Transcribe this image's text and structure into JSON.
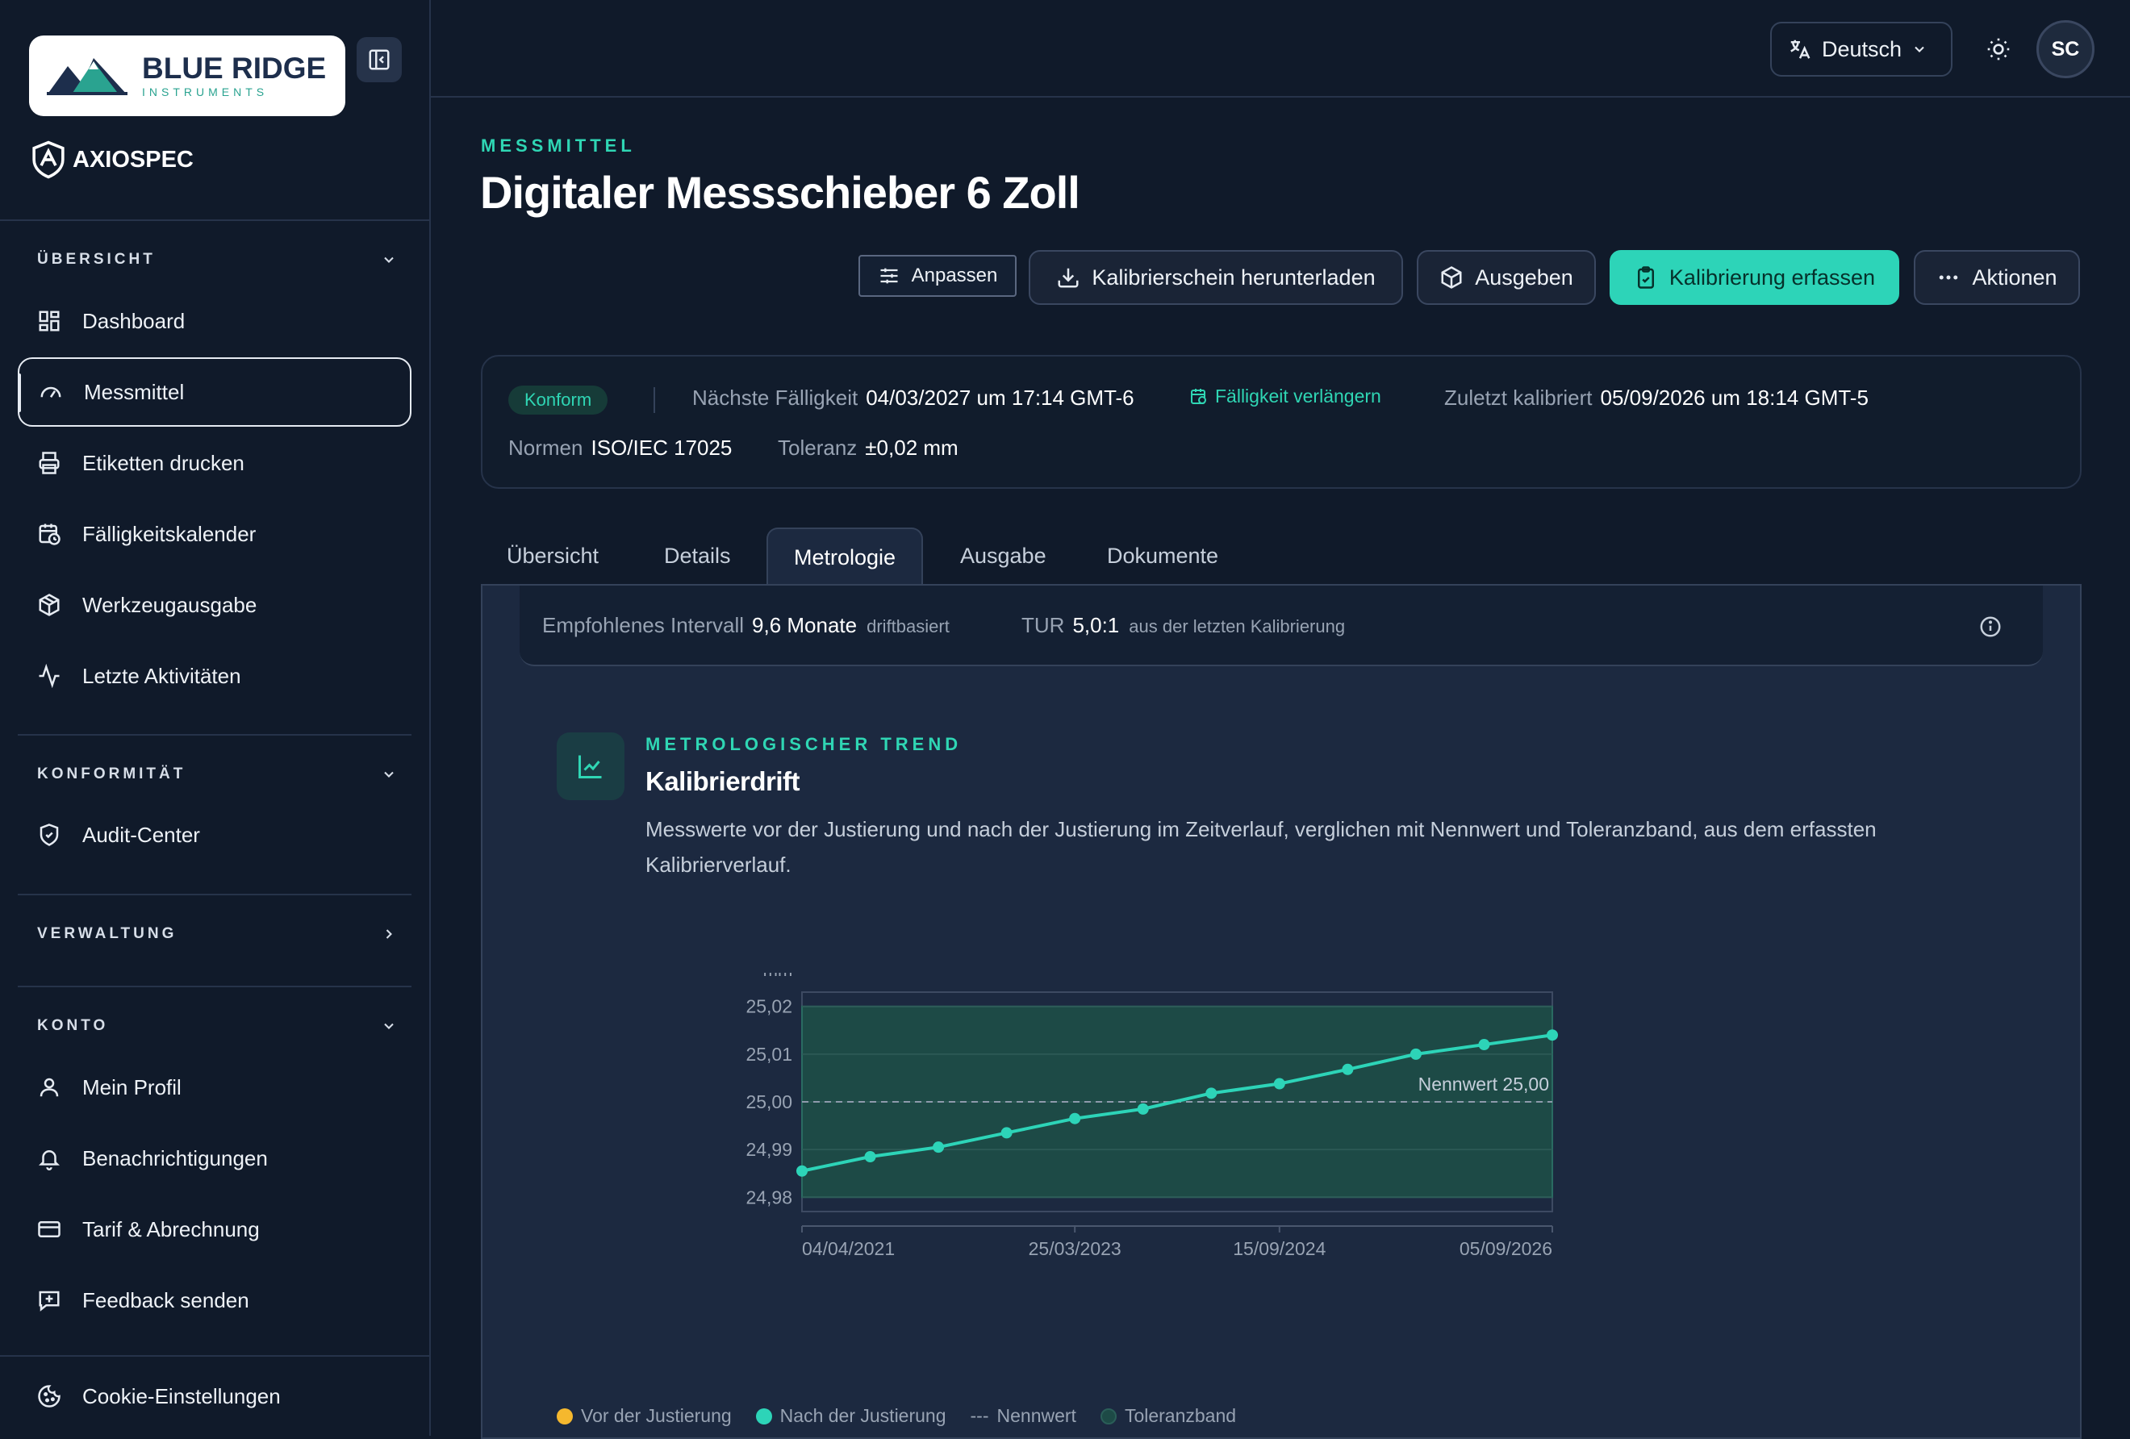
{
  "brand": {
    "logo_main": "BLUE RIDGE",
    "logo_sub": "INSTRUMENTS",
    "product": "AXIOSPEC"
  },
  "sidebar": {
    "sections": [
      {
        "title": "ÜBERSICHT",
        "items": [
          {
            "label": "Dashboard",
            "icon": "dashboard-icon"
          },
          {
            "label": "Messmittel",
            "icon": "gauge-icon",
            "active": true
          },
          {
            "label": "Etiketten drucken",
            "icon": "printer-icon"
          },
          {
            "label": "Fälligkeitskalender",
            "icon": "calendar-clock-icon"
          },
          {
            "label": "Werkzeugausgabe",
            "icon": "package-icon"
          },
          {
            "label": "Letzte Aktivitäten",
            "icon": "activity-icon"
          }
        ]
      },
      {
        "title": "KONFORMITÄT",
        "items": [
          {
            "label": "Audit-Center",
            "icon": "shield-check-icon"
          }
        ]
      },
      {
        "title": "VERWALTUNG",
        "items": []
      },
      {
        "title": "KONTO",
        "items": [
          {
            "label": "Mein Profil",
            "icon": "user-icon"
          },
          {
            "label": "Benachrichtigungen",
            "icon": "bell-icon"
          },
          {
            "label": "Tarif & Abrechnung",
            "icon": "credit-card-icon"
          },
          {
            "label": "Feedback senden",
            "icon": "message-plus-icon"
          }
        ]
      }
    ],
    "footer_item": {
      "label": "Cookie-Einstellungen",
      "icon": "cookie-icon"
    }
  },
  "topbar": {
    "language": "Deutsch",
    "avatar_initials": "SC"
  },
  "page": {
    "eyebrow": "MESSMITTEL",
    "title": "Digitaler Messschieber 6 Zoll"
  },
  "actions": {
    "customize": "Anpassen",
    "download_cert": "Kalibrierschein herunterladen",
    "issue": "Ausgeben",
    "record_calibration": "Kalibrierung erfassen",
    "more": "Aktionen"
  },
  "info": {
    "status": "Konform",
    "next_due_label": "Nächste Fälligkeit",
    "next_due_value": "04/03/2027 um 17:14 GMT-6",
    "extend_label": "Fälligkeit verlängern",
    "last_cal_label": "Zuletzt kalibriert",
    "last_cal_value": "05/09/2026 um 18:14 GMT-5",
    "norms_label": "Normen",
    "norms_value": "ISO/IEC 17025",
    "tolerance_label": "Toleranz",
    "tolerance_value": "±0,02 mm"
  },
  "tabs": [
    "Übersicht",
    "Details",
    "Metrologie",
    "Ausgabe",
    "Dokumente"
  ],
  "active_tab": "Metrologie",
  "recommendation": {
    "interval_label": "Empfohlenes Intervall",
    "interval_value": "9,6 Monate",
    "interval_note": "driftbasiert",
    "tur_label": "TUR",
    "tur_value": "5,0:1",
    "tur_note": "aus der letzten Kalibrierung"
  },
  "chart_section": {
    "eyebrow": "METROLOGISCHER TREND",
    "title": "Kalibrierdrift",
    "description": "Messwerte vor der Justierung und nach der Justierung im Zeitverlauf, verglichen mit Nennwert und Toleranzband, aus dem erfassten Kalibrierverlauf."
  },
  "chart_data": {
    "type": "line",
    "ylabel": "mm",
    "ylim": [
      24.977,
      25.023
    ],
    "yticks": [
      "25,02",
      "25,01",
      "25,00",
      "24,99",
      "24,98"
    ],
    "ytick_values": [
      25.02,
      25.01,
      25.0,
      24.99,
      24.98
    ],
    "xtick_labels": [
      "04/04/2021",
      "25/03/2023",
      "15/09/2024",
      "05/09/2026"
    ],
    "nominal": 25.0,
    "nominal_label": "Nennwert 25,00",
    "tolerance_band": [
      24.98,
      25.02
    ],
    "series": [
      {
        "name": "Vor der Justierung",
        "color": "#f5b82e",
        "values": []
      },
      {
        "name": "Nach der Justierung",
        "color": "#2dd4b8",
        "values": [
          24.9855,
          24.9885,
          24.9905,
          24.9935,
          24.9965,
          24.9985,
          25.0018,
          25.0038,
          25.0068,
          25.01,
          25.012,
          25.014
        ]
      }
    ],
    "legend": [
      "Vor der Justierung",
      "Nach der Justierung",
      "Nennwert",
      "Toleranzband"
    ],
    "grid": true
  }
}
